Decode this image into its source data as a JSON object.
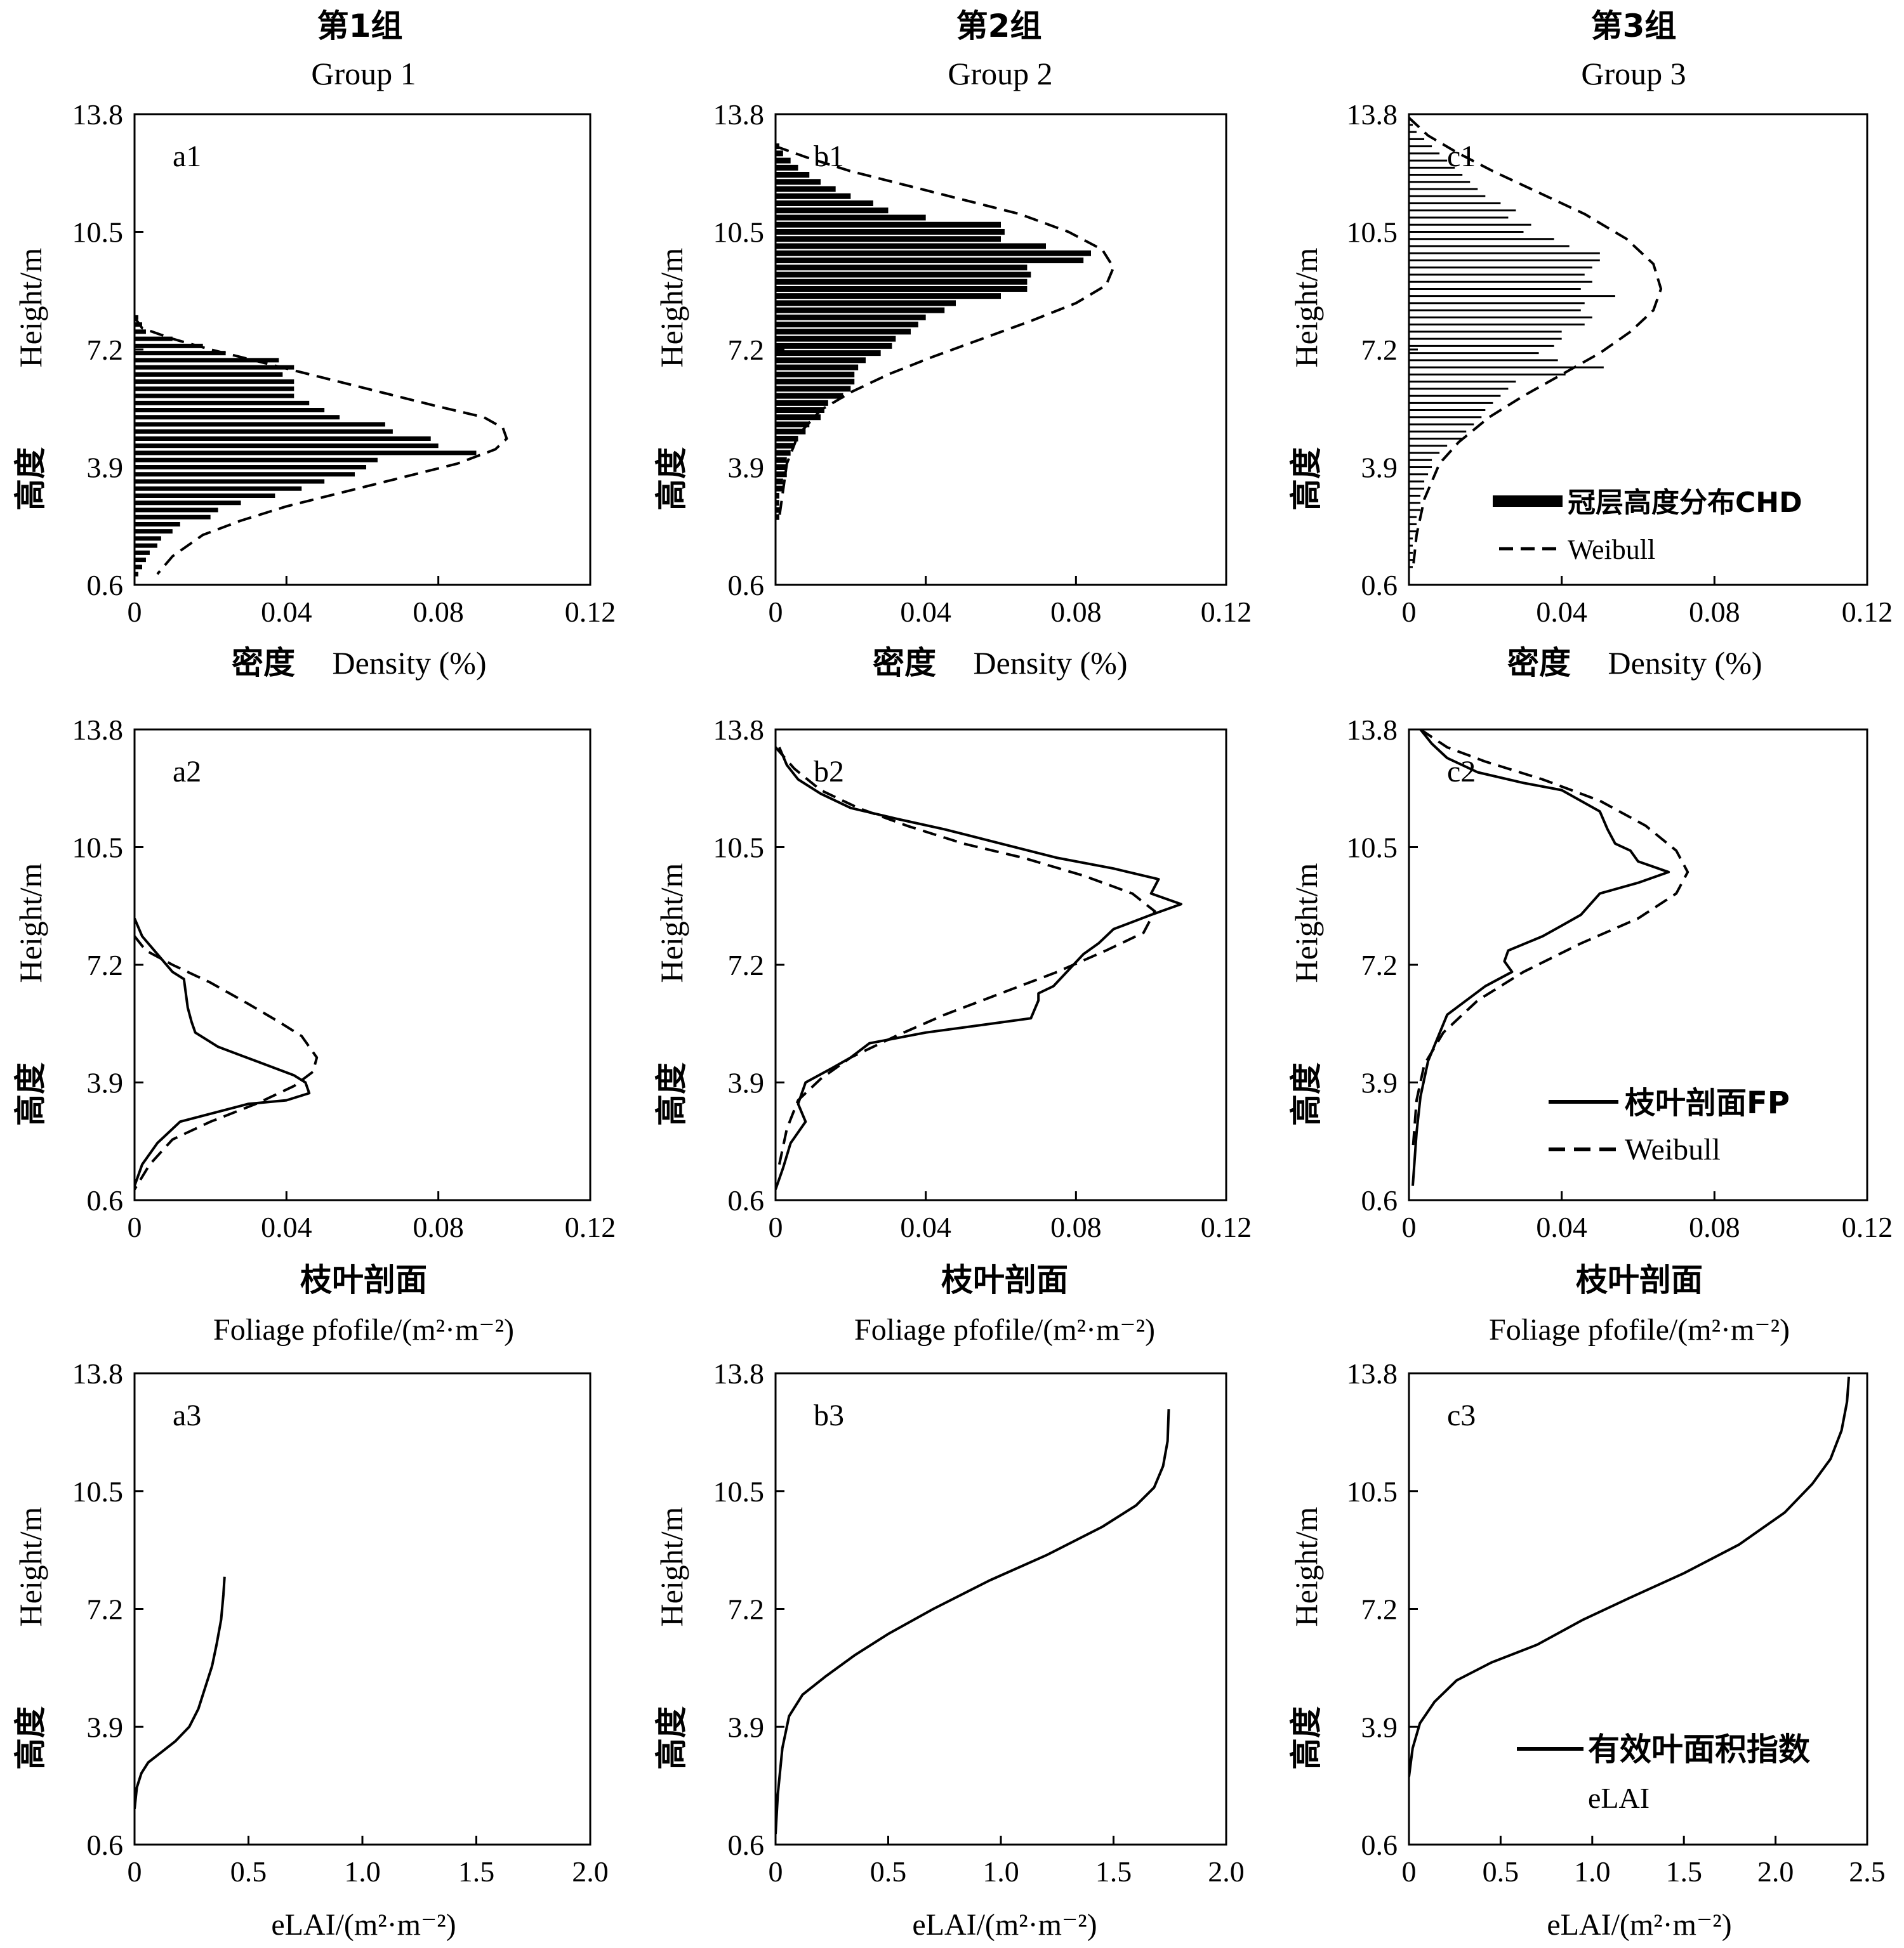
{
  "groups": [
    {
      "zh": "第1组",
      "en": "Group 1"
    },
    {
      "zh": "第2组",
      "en": "Group 2"
    },
    {
      "zh": "第3组",
      "en": "Group 3"
    }
  ],
  "axis_text": {
    "y_zh": "高度",
    "y_en": "Height/m",
    "row1_x_zh": "密度",
    "row1_x_en": "Density (%)",
    "row2_x_zh": "枝叶剖面",
    "row2_x_en": "Foliage pfofile/(m²·m⁻²)",
    "row3_x_en": "eLAI/(m²·m⁻²)"
  },
  "legends": {
    "row1": [
      {
        "label": "冠层高度分布CHD",
        "style": "thick"
      },
      {
        "label": "Weibull",
        "style": "dashed"
      }
    ],
    "row2": [
      {
        "label": "枝叶剖面FP",
        "style": "solid"
      },
      {
        "label": "Weibull",
        "style": "dashed"
      }
    ],
    "row3": [
      {
        "label": "有效叶面积指数",
        "sublabel": "eLAI",
        "style": "solid"
      }
    ]
  },
  "colors": {
    "ink": "#000000",
    "background": "#ffffff"
  },
  "chart_data": [
    {
      "id": "a1",
      "panel_label": "a1",
      "type": "bar",
      "orientation": "horizontal",
      "xlim": [
        0,
        0.12
      ],
      "xticks": [
        "0",
        "0.04",
        "0.08",
        "0.12"
      ],
      "ylim": [
        0.6,
        13.8
      ],
      "yticks": [
        "0.6",
        "3.9",
        "7.2",
        "10.5",
        "13.8"
      ],
      "bars_y": [
        8.1,
        7.9,
        7.7,
        7.5,
        7.3,
        7.1,
        6.9,
        6.7,
        6.5,
        6.3,
        6.1,
        5.9,
        5.7,
        5.5,
        5.3,
        5.1,
        4.9,
        4.7,
        4.5,
        4.3,
        4.1,
        3.9,
        3.7,
        3.5,
        3.3,
        3.1,
        2.9,
        2.7,
        2.5,
        2.3,
        2.1,
        1.9,
        1.7,
        1.5,
        1.3,
        1.1,
        0.9
      ],
      "bars_x": [
        0.001,
        0.002,
        0.003,
        0.01,
        0.018,
        0.024,
        0.038,
        0.042,
        0.039,
        0.042,
        0.042,
        0.042,
        0.046,
        0.05,
        0.054,
        0.066,
        0.068,
        0.078,
        0.08,
        0.09,
        0.064,
        0.061,
        0.058,
        0.05,
        0.044,
        0.037,
        0.028,
        0.022,
        0.02,
        0.012,
        0.01,
        0.007,
        0.006,
        0.004,
        0.003,
        0.002,
        0.001
      ],
      "weibull": {
        "x": [
          0.0,
          0.002,
          0.01,
          0.02,
          0.035,
          0.05,
          0.065,
          0.08,
          0.092,
          0.097,
          0.098,
          0.095,
          0.085,
          0.07,
          0.055,
          0.04,
          0.028,
          0.018,
          0.01,
          0.006
        ],
        "y": [
          8.1,
          7.8,
          7.5,
          7.2,
          6.8,
          6.4,
          6.0,
          5.6,
          5.3,
          5.0,
          4.7,
          4.4,
          4.0,
          3.6,
          3.2,
          2.8,
          2.4,
          2.0,
          1.4,
          0.9
        ]
      }
    },
    {
      "id": "b1",
      "panel_label": "b1",
      "type": "bar",
      "orientation": "horizontal",
      "xlim": [
        0,
        0.12
      ],
      "xticks": [
        "0",
        "0.04",
        "0.08",
        "0.12"
      ],
      "ylim": [
        0.6,
        13.8
      ],
      "yticks": [
        "0.6",
        "3.9",
        "7.2",
        "10.5",
        "13.8"
      ],
      "bars_y": [
        12.9,
        12.7,
        12.5,
        12.3,
        12.1,
        11.9,
        11.7,
        11.5,
        11.3,
        11.1,
        10.9,
        10.7,
        10.5,
        10.3,
        10.1,
        9.9,
        9.7,
        9.5,
        9.3,
        9.1,
        8.9,
        8.7,
        8.5,
        8.3,
        8.1,
        7.9,
        7.7,
        7.5,
        7.3,
        7.1,
        6.9,
        6.7,
        6.5,
        6.3,
        6.1,
        5.9,
        5.7,
        5.5,
        5.3,
        5.1,
        4.9,
        4.7,
        4.5,
        4.3,
        4.1,
        3.9,
        3.7,
        3.5,
        3.3,
        3.1,
        2.9,
        2.7,
        2.5
      ],
      "bars_x": [
        0.001,
        0.002,
        0.004,
        0.006,
        0.009,
        0.012,
        0.016,
        0.02,
        0.026,
        0.03,
        0.04,
        0.06,
        0.061,
        0.06,
        0.072,
        0.084,
        0.082,
        0.067,
        0.068,
        0.067,
        0.067,
        0.06,
        0.048,
        0.045,
        0.04,
        0.038,
        0.036,
        0.032,
        0.031,
        0.028,
        0.024,
        0.022,
        0.021,
        0.021,
        0.02,
        0.018,
        0.014,
        0.013,
        0.012,
        0.009,
        0.008,
        0.006,
        0.005,
        0.004,
        0.003,
        0.003,
        0.003,
        0.002,
        0.002,
        0.001,
        0.001,
        0.001,
        0.001
      ],
      "weibull": {
        "x": [
          0.0,
          0.008,
          0.02,
          0.035,
          0.05,
          0.065,
          0.078,
          0.087,
          0.09,
          0.088,
          0.08,
          0.068,
          0.055,
          0.042,
          0.03,
          0.02,
          0.012,
          0.006,
          0.003,
          0.001
        ],
        "y": [
          12.9,
          12.6,
          12.2,
          11.8,
          11.4,
          11.0,
          10.5,
          10.0,
          9.5,
          9.0,
          8.5,
          8.0,
          7.5,
          7.0,
          6.5,
          6.0,
          5.5,
          4.8,
          4.0,
          2.5
        ]
      }
    },
    {
      "id": "c1",
      "panel_label": "c1",
      "type": "bar",
      "orientation": "horizontal",
      "xlim": [
        0,
        0.12
      ],
      "xticks": [
        "0",
        "0.04",
        "0.08",
        "0.12"
      ],
      "ylim": [
        0.6,
        13.8
      ],
      "yticks": [
        "0.6",
        "3.9",
        "7.2",
        "10.5",
        "13.8"
      ],
      "bars_y": [
        13.5,
        13.3,
        13.1,
        12.9,
        12.7,
        12.5,
        12.3,
        12.1,
        11.9,
        11.7,
        11.5,
        11.3,
        11.1,
        10.9,
        10.7,
        10.5,
        10.3,
        10.1,
        9.9,
        9.7,
        9.5,
        9.3,
        9.1,
        8.9,
        8.7,
        8.5,
        8.3,
        8.1,
        7.9,
        7.7,
        7.5,
        7.3,
        7.1,
        6.9,
        6.7,
        6.5,
        6.3,
        6.1,
        5.9,
        5.7,
        5.5,
        5.3,
        5.1,
        4.9,
        4.7,
        4.5,
        4.3,
        4.1,
        3.9,
        3.7,
        3.5,
        3.3,
        3.1,
        2.9,
        2.7,
        2.5,
        2.3,
        2.1,
        1.9,
        1.7,
        1.5,
        1.3,
        1.1
      ],
      "bars_x": [
        0.001,
        0.002,
        0.004,
        0.006,
        0.008,
        0.01,
        0.012,
        0.014,
        0.016,
        0.018,
        0.02,
        0.024,
        0.028,
        0.026,
        0.032,
        0.03,
        0.038,
        0.042,
        0.05,
        0.05,
        0.048,
        0.046,
        0.048,
        0.045,
        0.054,
        0.046,
        0.045,
        0.048,
        0.046,
        0.04,
        0.04,
        0.038,
        0.034,
        0.039,
        0.051,
        0.041,
        0.028,
        0.026,
        0.024,
        0.022,
        0.02,
        0.019,
        0.017,
        0.015,
        0.014,
        0.01,
        0.008,
        0.006,
        0.006,
        0.005,
        0.004,
        0.004,
        0.003,
        0.003,
        0.003,
        0.002,
        0.002,
        0.002,
        0.001,
        0.001,
        0.001,
        0.001,
        0.001
      ],
      "weibull": {
        "x": [
          0.0,
          0.005,
          0.013,
          0.022,
          0.034,
          0.046,
          0.057,
          0.064,
          0.066,
          0.064,
          0.058,
          0.05,
          0.04,
          0.03,
          0.021,
          0.013,
          0.008,
          0.004,
          0.002,
          0.001
        ],
        "y": [
          13.7,
          13.2,
          12.7,
          12.2,
          11.6,
          11.0,
          10.3,
          9.6,
          8.9,
          8.3,
          7.7,
          7.1,
          6.5,
          5.9,
          5.3,
          4.6,
          4.0,
          3.0,
          2.0,
          1.0
        ]
      }
    },
    {
      "id": "a2",
      "panel_label": "a2",
      "type": "line",
      "xlim": [
        0,
        0.12
      ],
      "xticks": [
        "0",
        "0.04",
        "0.08",
        "0.12"
      ],
      "ylim": [
        0.6,
        13.8
      ],
      "yticks": [
        "0.6",
        "3.9",
        "7.2",
        "10.5",
        "13.8"
      ],
      "series": [
        {
          "style": "solid",
          "x": [
            0.0,
            0.002,
            0.006,
            0.01,
            0.013,
            0.0135,
            0.014,
            0.015,
            0.016,
            0.022,
            0.032,
            0.042,
            0.045,
            0.046,
            0.04,
            0.03,
            0.012,
            0.006,
            0.002,
            0.0
          ],
          "y": [
            8.5,
            8.0,
            7.5,
            7.0,
            6.8,
            6.4,
            6.0,
            5.6,
            5.3,
            4.9,
            4.5,
            4.1,
            3.9,
            3.6,
            3.4,
            3.3,
            2.8,
            2.2,
            1.6,
            1.0
          ]
        },
        {
          "style": "dashed",
          "x": [
            0.0,
            0.003,
            0.01,
            0.02,
            0.03,
            0.038,
            0.044,
            0.048,
            0.047,
            0.042,
            0.032,
            0.02,
            0.01,
            0.004,
            0.0
          ],
          "y": [
            8.0,
            7.6,
            7.2,
            6.7,
            6.1,
            5.6,
            5.2,
            4.6,
            4.2,
            3.8,
            3.3,
            2.8,
            2.3,
            1.6,
            0.9
          ]
        }
      ]
    },
    {
      "id": "b2",
      "panel_label": "b2",
      "type": "line",
      "xlim": [
        0,
        0.12
      ],
      "xticks": [
        "0",
        "0.04",
        "0.08",
        "0.12"
      ],
      "ylim": [
        0.6,
        13.8
      ],
      "yticks": [
        "0.6",
        "3.9",
        "7.2",
        "10.5",
        "13.8"
      ],
      "series": [
        {
          "style": "solid",
          "x": [
            0.001,
            0.003,
            0.006,
            0.012,
            0.02,
            0.032,
            0.045,
            0.06,
            0.075,
            0.09,
            0.102,
            0.1,
            0.108,
            0.1,
            0.09,
            0.086,
            0.082,
            0.074,
            0.07,
            0.07,
            0.068,
            0.054,
            0.04,
            0.025,
            0.02,
            0.015,
            0.008,
            0.006,
            0.008,
            0.004,
            0.002,
            0.0
          ],
          "y": [
            13.3,
            12.8,
            12.4,
            12.0,
            11.6,
            11.3,
            11.0,
            10.6,
            10.2,
            9.9,
            9.6,
            9.2,
            8.9,
            8.6,
            8.2,
            7.8,
            7.5,
            6.6,
            6.4,
            6.2,
            5.7,
            5.5,
            5.3,
            5.0,
            4.6,
            4.3,
            3.9,
            3.3,
            2.8,
            2.2,
            1.5,
            0.9
          ]
        },
        {
          "style": "dashed",
          "x": [
            0.0,
            0.005,
            0.012,
            0.022,
            0.035,
            0.05,
            0.066,
            0.082,
            0.095,
            0.101,
            0.098,
            0.088,
            0.075,
            0.06,
            0.045,
            0.032,
            0.02,
            0.012,
            0.006,
            0.003,
            0.001
          ],
          "y": [
            13.3,
            12.7,
            12.1,
            11.6,
            11.1,
            10.6,
            10.2,
            9.7,
            9.2,
            8.7,
            8.1,
            7.6,
            7.0,
            6.4,
            5.8,
            5.2,
            4.6,
            4.0,
            3.4,
            2.6,
            1.6
          ]
        }
      ]
    },
    {
      "id": "c2",
      "panel_label": "c2",
      "type": "line",
      "xlim": [
        0,
        0.12
      ],
      "xticks": [
        "0",
        "0.04",
        "0.08",
        "0.12"
      ],
      "ylim": [
        0.6,
        13.8
      ],
      "yticks": [
        "0.6",
        "3.9",
        "7.2",
        "10.5",
        "13.8"
      ],
      "series": [
        {
          "style": "solid",
          "x": [
            0.003,
            0.006,
            0.01,
            0.018,
            0.03,
            0.04,
            0.05,
            0.052,
            0.054,
            0.058,
            0.06,
            0.068,
            0.06,
            0.05,
            0.045,
            0.04,
            0.035,
            0.026,
            0.025,
            0.027,
            0.02,
            0.01,
            0.005,
            0.003,
            0.002,
            0.001
          ],
          "y": [
            13.8,
            13.4,
            13.0,
            12.6,
            12.3,
            12.1,
            11.5,
            11.0,
            10.6,
            10.4,
            10.1,
            9.8,
            9.5,
            9.2,
            8.6,
            8.3,
            8.0,
            7.6,
            7.3,
            7.0,
            6.6,
            5.8,
            4.5,
            3.5,
            2.5,
            1.0
          ]
        },
        {
          "style": "dashed",
          "x": [
            0.003,
            0.01,
            0.02,
            0.035,
            0.05,
            0.062,
            0.07,
            0.073,
            0.07,
            0.06,
            0.045,
            0.03,
            0.018,
            0.009,
            0.004,
            0.002,
            0.001
          ],
          "y": [
            13.8,
            13.3,
            12.9,
            12.4,
            11.8,
            11.1,
            10.4,
            9.8,
            9.2,
            8.5,
            7.8,
            7.0,
            6.2,
            5.3,
            4.4,
            3.4,
            2.0
          ]
        }
      ]
    },
    {
      "id": "a3",
      "panel_label": "a3",
      "type": "line",
      "xlim": [
        0,
        2.0
      ],
      "xticks": [
        "0",
        "0.5",
        "1.0",
        "1.5",
        "2.0"
      ],
      "ylim": [
        0.6,
        13.8
      ],
      "yticks": [
        "0.6",
        "3.9",
        "7.2",
        "10.5",
        "13.8"
      ],
      "series": [
        {
          "style": "solid",
          "x": [
            0.0,
            0.01,
            0.03,
            0.06,
            0.12,
            0.18,
            0.24,
            0.28,
            0.31,
            0.34,
            0.36,
            0.38,
            0.39,
            0.395
          ],
          "y": [
            1.6,
            2.2,
            2.6,
            2.9,
            3.2,
            3.5,
            3.9,
            4.4,
            5.0,
            5.6,
            6.2,
            6.9,
            7.6,
            8.1
          ]
        }
      ]
    },
    {
      "id": "b3",
      "panel_label": "b3",
      "type": "line",
      "xlim": [
        0,
        2.0
      ],
      "xticks": [
        "0",
        "0.5",
        "1.0",
        "1.5",
        "2.0"
      ],
      "ylim": [
        0.6,
        13.8
      ],
      "yticks": [
        "0.6",
        "3.9",
        "7.2",
        "10.5",
        "13.8"
      ],
      "series": [
        {
          "style": "solid",
          "x": [
            0.0,
            0.01,
            0.03,
            0.06,
            0.12,
            0.22,
            0.35,
            0.5,
            0.7,
            0.95,
            1.2,
            1.45,
            1.6,
            1.68,
            1.72,
            1.74,
            1.745
          ],
          "y": [
            0.9,
            2.0,
            3.3,
            4.2,
            4.8,
            5.3,
            5.9,
            6.5,
            7.2,
            8.0,
            8.7,
            9.5,
            10.1,
            10.6,
            11.2,
            11.9,
            12.8
          ]
        }
      ]
    },
    {
      "id": "c3",
      "panel_label": "c3",
      "type": "line",
      "xlim": [
        0,
        2.5
      ],
      "xticks": [
        "0",
        "0.5",
        "1.0",
        "1.5",
        "2.0",
        "2.5"
      ],
      "ylim": [
        0.6,
        13.8
      ],
      "yticks": [
        "0.6",
        "3.9",
        "7.2",
        "10.5",
        "13.8"
      ],
      "series": [
        {
          "style": "solid",
          "x": [
            0.0,
            0.02,
            0.06,
            0.14,
            0.26,
            0.45,
            0.7,
            0.95,
            1.2,
            1.5,
            1.8,
            2.05,
            2.2,
            2.3,
            2.36,
            2.39,
            2.4
          ],
          "y": [
            2.5,
            3.3,
            4.0,
            4.6,
            5.2,
            5.7,
            6.2,
            6.9,
            7.5,
            8.2,
            9.0,
            9.9,
            10.7,
            11.4,
            12.2,
            13.0,
            13.7
          ]
        }
      ]
    }
  ]
}
